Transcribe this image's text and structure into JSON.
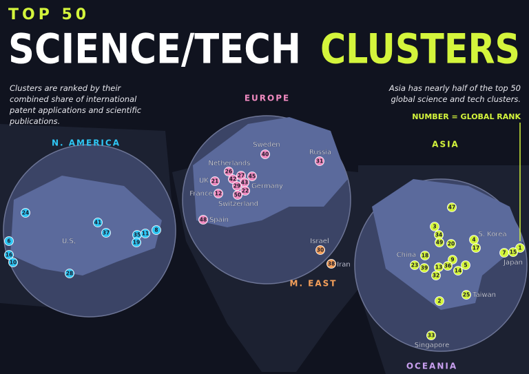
{
  "header": {
    "kicker": "TOP 50",
    "title_1": "SCIENCE/TECH",
    "title_2": "CLUSTERS"
  },
  "intro": "Clusters are ranked by their combined share of international patent applications and scientific publications.",
  "note": "Asia has nearly half of the top 50 global science and tech clusters.",
  "legend": "NUMBER = GLOBAL RANK",
  "regions": [
    {
      "name": "N. AMERICA",
      "places": [
        "U.S,"
      ],
      "ranks": [
        24,
        41,
        37,
        35,
        11,
        8,
        19,
        6,
        16,
        10,
        28
      ]
    },
    {
      "name": "EUROPE",
      "places": [
        "Sweden",
        "Russia",
        "Netherlands",
        "UK",
        "Germany",
        "France",
        "Switzerland",
        "Spain"
      ],
      "ranks": [
        40,
        31,
        26,
        42,
        27,
        45,
        43,
        29,
        22,
        50,
        21,
        12,
        48
      ]
    },
    {
      "name": "M. EAST",
      "places": [
        "Israel",
        "Iran"
      ],
      "ranks": [
        30,
        38
      ]
    },
    {
      "name": "ASIA",
      "places": [
        "China",
        "S. Korea",
        "Japan",
        "Taiwan",
        "Singapore"
      ],
      "ranks": [
        47,
        3,
        34,
        49,
        20,
        4,
        17,
        18,
        1,
        7,
        15,
        9,
        36,
        5,
        23,
        39,
        13,
        14,
        32,
        2,
        25,
        33
      ]
    },
    {
      "name": "OCEANIA"
    }
  ]
}
